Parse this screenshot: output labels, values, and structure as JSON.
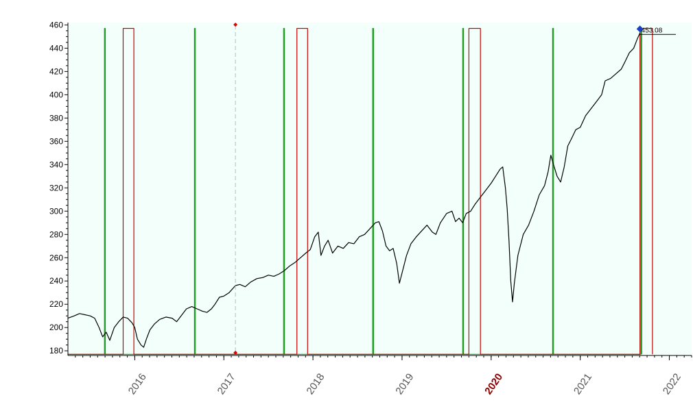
{
  "chart_data": {
    "type": "line",
    "title": "",
    "xlabel": "",
    "ylabel": "",
    "ylim": [
      176,
      462
    ],
    "xlim": [
      2015.25,
      2022.25
    ],
    "grid": false,
    "background_color": "#f2fffb",
    "y_ticks": [
      "180",
      "200",
      "220",
      "240",
      "260",
      "280",
      "300",
      "320",
      "340",
      "360",
      "380",
      "400",
      "420",
      "440",
      "460"
    ],
    "x_ticks": [
      {
        "label": "2016",
        "x": 2016.0,
        "highlight": false
      },
      {
        "label": "2017",
        "x": 2017.0,
        "highlight": false
      },
      {
        "label": "2018",
        "x": 2018.0,
        "highlight": false
      },
      {
        "label": "2019",
        "x": 2019.0,
        "highlight": false
      },
      {
        "label": "2020",
        "x": 2020.0,
        "highlight": true
      },
      {
        "label": "2021",
        "x": 2021.0,
        "highlight": false
      },
      {
        "label": "2022",
        "x": 2022.0,
        "highlight": false
      }
    ],
    "cursor_x": 2017.13,
    "last_value_label": "453.08",
    "series": [
      {
        "color": "#000000",
        "points": [
          [
            2015.25,
            208
          ],
          [
            2015.32,
            210
          ],
          [
            2015.38,
            212
          ],
          [
            2015.44,
            211
          ],
          [
            2015.5,
            210
          ],
          [
            2015.55,
            208
          ],
          [
            2015.6,
            200
          ],
          [
            2015.64,
            192
          ],
          [
            2015.68,
            196
          ],
          [
            2015.72,
            189
          ],
          [
            2015.77,
            200
          ],
          [
            2015.82,
            205
          ],
          [
            2015.87,
            209
          ],
          [
            2015.92,
            208
          ],
          [
            2015.97,
            204
          ],
          [
            2016.0,
            200
          ],
          [
            2016.03,
            190
          ],
          [
            2016.07,
            185
          ],
          [
            2016.1,
            183
          ],
          [
            2016.13,
            190
          ],
          [
            2016.17,
            198
          ],
          [
            2016.22,
            203
          ],
          [
            2016.28,
            207
          ],
          [
            2016.35,
            209
          ],
          [
            2016.42,
            208
          ],
          [
            2016.47,
            205
          ],
          [
            2016.52,
            210
          ],
          [
            2016.58,
            216
          ],
          [
            2016.64,
            218
          ],
          [
            2016.7,
            216
          ],
          [
            2016.76,
            214
          ],
          [
            2016.81,
            213
          ],
          [
            2016.86,
            216
          ],
          [
            2016.9,
            220
          ],
          [
            2016.95,
            226
          ],
          [
            2017.0,
            227
          ],
          [
            2017.06,
            230
          ],
          [
            2017.13,
            236
          ],
          [
            2017.18,
            237
          ],
          [
            2017.24,
            235
          ],
          [
            2017.3,
            239
          ],
          [
            2017.37,
            242
          ],
          [
            2017.44,
            243
          ],
          [
            2017.5,
            245
          ],
          [
            2017.56,
            244
          ],
          [
            2017.62,
            246
          ],
          [
            2017.68,
            249
          ],
          [
            2017.74,
            253
          ],
          [
            2017.8,
            256
          ],
          [
            2017.86,
            260
          ],
          [
            2017.92,
            264
          ],
          [
            2017.97,
            267
          ],
          [
            2018.02,
            278
          ],
          [
            2018.06,
            282
          ],
          [
            2018.09,
            262
          ],
          [
            2018.13,
            270
          ],
          [
            2018.17,
            275
          ],
          [
            2018.22,
            264
          ],
          [
            2018.28,
            270
          ],
          [
            2018.34,
            268
          ],
          [
            2018.4,
            273
          ],
          [
            2018.46,
            272
          ],
          [
            2018.52,
            278
          ],
          [
            2018.58,
            280
          ],
          [
            2018.64,
            285
          ],
          [
            2018.7,
            290
          ],
          [
            2018.74,
            291
          ],
          [
            2018.78,
            283
          ],
          [
            2018.82,
            270
          ],
          [
            2018.86,
            266
          ],
          [
            2018.9,
            268
          ],
          [
            2018.94,
            255
          ],
          [
            2018.97,
            238
          ],
          [
            2019.01,
            250
          ],
          [
            2019.05,
            262
          ],
          [
            2019.1,
            272
          ],
          [
            2019.16,
            278
          ],
          [
            2019.22,
            283
          ],
          [
            2019.28,
            288
          ],
          [
            2019.34,
            282
          ],
          [
            2019.38,
            280
          ],
          [
            2019.43,
            290
          ],
          [
            2019.5,
            298
          ],
          [
            2019.56,
            300
          ],
          [
            2019.6,
            291
          ],
          [
            2019.64,
            294
          ],
          [
            2019.68,
            290
          ],
          [
            2019.72,
            298
          ],
          [
            2019.77,
            300
          ],
          [
            2019.82,
            306
          ],
          [
            2019.88,
            312
          ],
          [
            2019.94,
            318
          ],
          [
            2020.0,
            324
          ],
          [
            2020.05,
            330
          ],
          [
            2020.1,
            336
          ],
          [
            2020.13,
            338
          ],
          [
            2020.16,
            320
          ],
          [
            2020.18,
            302
          ],
          [
            2020.2,
            275
          ],
          [
            2020.22,
            240
          ],
          [
            2020.24,
            222
          ],
          [
            2020.26,
            238
          ],
          [
            2020.3,
            262
          ],
          [
            2020.36,
            280
          ],
          [
            2020.42,
            288
          ],
          [
            2020.48,
            300
          ],
          [
            2020.54,
            314
          ],
          [
            2020.6,
            322
          ],
          [
            2020.64,
            334
          ],
          [
            2020.67,
            348
          ],
          [
            2020.7,
            340
          ],
          [
            2020.74,
            330
          ],
          [
            2020.78,
            325
          ],
          [
            2020.82,
            338
          ],
          [
            2020.86,
            356
          ],
          [
            2020.9,
            362
          ],
          [
            2020.95,
            370
          ],
          [
            2021.0,
            372
          ],
          [
            2021.06,
            382
          ],
          [
            2021.12,
            388
          ],
          [
            2021.18,
            394
          ],
          [
            2021.24,
            400
          ],
          [
            2021.28,
            412
          ],
          [
            2021.34,
            414
          ],
          [
            2021.4,
            418
          ],
          [
            2021.46,
            422
          ],
          [
            2021.5,
            428
          ],
          [
            2021.55,
            436
          ],
          [
            2021.6,
            440
          ],
          [
            2021.64,
            448
          ],
          [
            2021.67,
            453
          ]
        ]
      },
      {
        "color": "#cc0000",
        "points": [
          [
            2015.25,
            177
          ],
          [
            2015.87,
            177
          ],
          [
            2015.87,
            457
          ],
          [
            2015.99,
            457
          ],
          [
            2015.99,
            177
          ],
          [
            2017.82,
            177
          ],
          [
            2017.82,
            457
          ],
          [
            2017.94,
            457
          ],
          [
            2017.94,
            177
          ],
          [
            2019.75,
            177
          ],
          [
            2019.75,
            457
          ],
          [
            2019.88,
            457
          ],
          [
            2019.88,
            177
          ],
          [
            2021.67,
            177
          ],
          [
            2021.67,
            457
          ],
          [
            2021.81,
            457
          ],
          [
            2021.81,
            177
          ]
        ]
      },
      {
        "color": "#1a9a1a",
        "points": [
          [
            2015.25,
            177
          ],
          [
            2015.66,
            177
          ],
          [
            2015.66,
            457
          ],
          [
            2015.67,
            457
          ],
          [
            2015.67,
            177
          ],
          [
            2016.67,
            177
          ],
          [
            2016.67,
            457
          ],
          [
            2016.68,
            457
          ],
          [
            2016.68,
            177
          ],
          [
            2017.67,
            177
          ],
          [
            2017.67,
            457
          ],
          [
            2017.68,
            457
          ],
          [
            2017.68,
            177
          ],
          [
            2018.67,
            177
          ],
          [
            2018.67,
            457
          ],
          [
            2018.68,
            457
          ],
          [
            2018.68,
            177
          ],
          [
            2019.68,
            177
          ],
          [
            2019.68,
            457
          ],
          [
            2019.69,
            457
          ],
          [
            2019.69,
            177
          ],
          [
            2020.69,
            177
          ],
          [
            2020.69,
            457
          ],
          [
            2020.7,
            457
          ],
          [
            2020.7,
            177
          ],
          [
            2021.68,
            177
          ],
          [
            2021.68,
            457
          ],
          [
            2021.69,
            457
          ],
          [
            2021.69,
            177
          ]
        ]
      }
    ]
  }
}
